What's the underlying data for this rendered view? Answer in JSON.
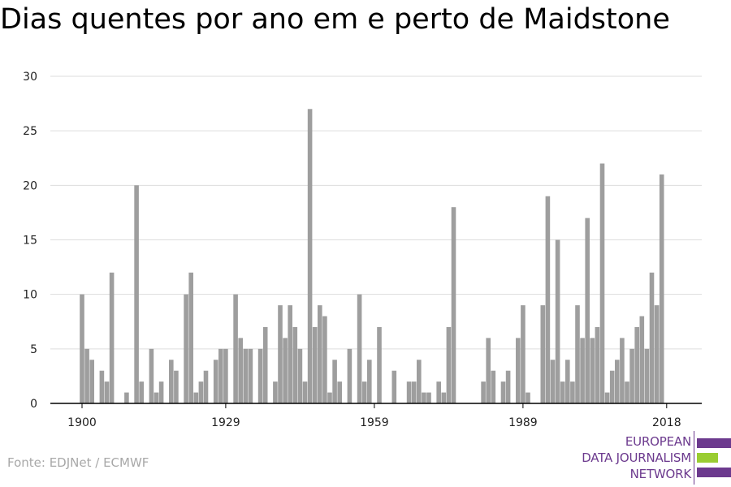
{
  "title": "Dias quentes por ano em e perto de Maidstone",
  "source": "Fonte: EDJNet / ECMWF",
  "logo": {
    "line1": "EUROPEAN",
    "line2": "DATA JOURNALISM",
    "line3": "NETWORK",
    "colors": {
      "purple": "#6c3a8e",
      "green": "#9acd32"
    }
  },
  "colors": {
    "bar": "#9e9e9e",
    "grid": "#dddddd",
    "axis": "#000000"
  },
  "chart_data": {
    "type": "bar",
    "title": "Dias quentes por ano em e perto de Maidstone",
    "xlabel": "",
    "ylabel": "",
    "ylim": [
      0,
      30
    ],
    "yticks": [
      0,
      5,
      10,
      15,
      20,
      25,
      30
    ],
    "xticks": [
      1900,
      1929,
      1959,
      1989,
      2018
    ],
    "x_start": 1900,
    "x_end": 2018,
    "grid": true,
    "x": [
      1900,
      1901,
      1902,
      1903,
      1904,
      1905,
      1906,
      1907,
      1908,
      1909,
      1910,
      1911,
      1912,
      1913,
      1914,
      1915,
      1916,
      1917,
      1918,
      1919,
      1920,
      1921,
      1922,
      1923,
      1924,
      1925,
      1926,
      1927,
      1928,
      1929,
      1930,
      1931,
      1932,
      1933,
      1934,
      1935,
      1936,
      1937,
      1938,
      1939,
      1940,
      1941,
      1942,
      1943,
      1944,
      1945,
      1946,
      1947,
      1948,
      1949,
      1950,
      1951,
      1952,
      1953,
      1954,
      1955,
      1956,
      1957,
      1958,
      1959,
      1960,
      1961,
      1962,
      1963,
      1964,
      1965,
      1966,
      1967,
      1968,
      1969,
      1970,
      1971,
      1972,
      1973,
      1974,
      1975,
      1976,
      1977,
      1978,
      1979,
      1980,
      1981,
      1982,
      1983,
      1984,
      1985,
      1986,
      1987,
      1988,
      1989,
      1990,
      1991,
      1992,
      1993,
      1994,
      1995,
      1996,
      1997,
      1998,
      1999,
      2000,
      2001,
      2002,
      2003,
      2004,
      2005,
      2006,
      2007,
      2008,
      2009,
      2010,
      2011,
      2012,
      2013,
      2014,
      2015,
      2016,
      2017,
      2018
    ],
    "values": [
      10,
      5,
      4,
      0,
      3,
      2,
      12,
      0,
      0,
      1,
      0,
      20,
      2,
      0,
      5,
      1,
      2,
      0,
      4,
      3,
      0,
      10,
      12,
      1,
      2,
      3,
      0,
      4,
      5,
      5,
      0,
      10,
      6,
      5,
      5,
      0,
      5,
      7,
      0,
      2,
      9,
      6,
      9,
      7,
      5,
      2,
      27,
      7,
      9,
      8,
      1,
      4,
      2,
      0,
      5,
      0,
      10,
      2,
      4,
      0,
      7,
      0,
      0,
      3,
      0,
      0,
      2,
      2,
      4,
      1,
      1,
      0,
      2,
      1,
      7,
      18,
      0,
      0,
      0,
      0,
      0,
      2,
      6,
      3,
      0,
      2,
      3,
      0,
      6,
      9,
      1,
      0,
      0,
      9,
      19,
      4,
      15,
      2,
      4,
      2,
      9,
      6,
      17,
      6,
      7,
      22,
      1,
      3,
      4,
      6,
      2,
      5,
      7,
      8,
      5,
      12,
      9,
      21,
      0
    ]
  }
}
